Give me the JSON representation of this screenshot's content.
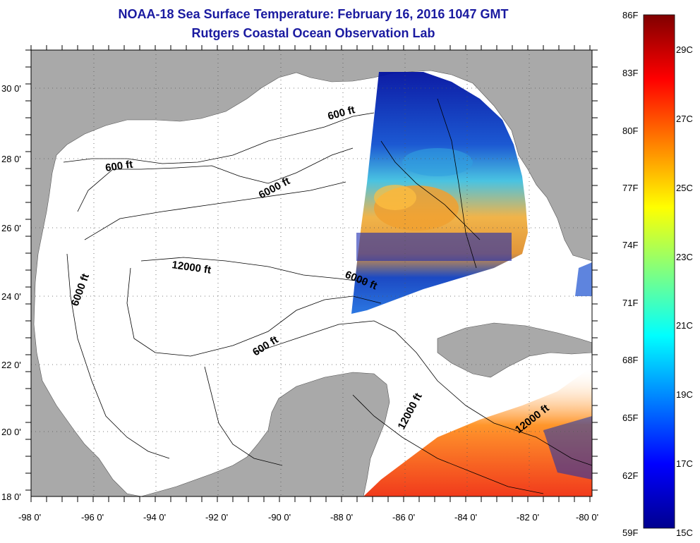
{
  "title": "NOAA-18 Sea Surface Temperature:  February 16, 2016 1047 GMT",
  "subtitle": "Rutgers Coastal Ocean Observation Lab",
  "axes": {
    "x_ticks": [
      "-98 0'",
      "-96 0'",
      "-94 0'",
      "-92 0'",
      "-90 0'",
      "-88 0'",
      "-86 0'",
      "-84 0'",
      "-82 0'",
      "-80 0'"
    ],
    "y_ticks": [
      "30 0'",
      "28 0'",
      "26 0'",
      "24 0'",
      "22 0'",
      "20 0'",
      "18 0'"
    ],
    "lon_range": [
      -98,
      -80
    ],
    "lat_range": [
      18,
      31
    ]
  },
  "contour_labels": {
    "c1": "600 ft",
    "c2": "600 ft",
    "c3": "6000 ft",
    "c4": "12000 ft",
    "c5": "6000 ft",
    "c6": "6000 ft",
    "c7": "600 ft",
    "c8": "12000 ft",
    "c9": "12000 ft"
  },
  "colorbar": {
    "fahrenheit": [
      "86F",
      "83F",
      "80F",
      "77F",
      "74F",
      "71F",
      "68F",
      "65F",
      "62F",
      "59F"
    ],
    "celsius": [
      "29C",
      "27C",
      "25C",
      "23C",
      "21C",
      "19C",
      "17C",
      "15C"
    ],
    "range_f": [
      59,
      86
    ],
    "colors": [
      "#00008f",
      "#0000ff",
      "#0080ff",
      "#00ffff",
      "#80ff80",
      "#ffff00",
      "#ff8000",
      "#ff0000",
      "#800000"
    ]
  },
  "colors": {
    "land": "#a9a9a9",
    "no_data": "#ffffff",
    "title": "#1a1aa0"
  }
}
